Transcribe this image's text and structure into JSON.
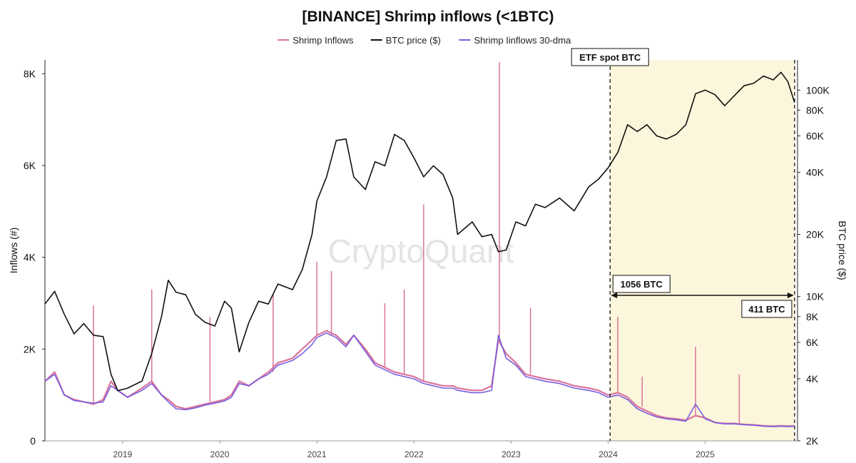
{
  "chart_data": {
    "type": "line",
    "title": "[BINANCE] Shrimp inflows (<1BTC)",
    "watermark": "CryptoQuant",
    "legend": {
      "placement": "top-center",
      "items": [
        {
          "label": "Shrimp Inflows",
          "color": "#d9739c"
        },
        {
          "label": "BTC price ($)",
          "color": "#111111"
        },
        {
          "label": "Shrimp Iinflows 30-dma",
          "color": "#7a5ee0"
        }
      ]
    },
    "y_left": {
      "label": "Inflows (#)",
      "range": [
        0,
        8300
      ],
      "ticks": [
        {
          "label": "0",
          "value": 0
        },
        {
          "label": "2K",
          "value": 2000
        },
        {
          "label": "4K",
          "value": 4000
        },
        {
          "label": "6K",
          "value": 6000
        },
        {
          "label": "8K",
          "value": 8000
        }
      ]
    },
    "y_right": {
      "label": "BTC price ($)",
      "scale": "log",
      "range": [
        2000,
        140000
      ],
      "ticks": [
        {
          "label": "2K",
          "value": 2000
        },
        {
          "label": "4K",
          "value": 4000
        },
        {
          "label": "6K",
          "value": 6000
        },
        {
          "label": "8K",
          "value": 8000
        },
        {
          "label": "10K",
          "value": 10000
        },
        {
          "label": "20K",
          "value": 20000
        },
        {
          "label": "40K",
          "value": 40000
        },
        {
          "label": "60K",
          "value": 60000
        },
        {
          "label": "80K",
          "value": 80000
        },
        {
          "label": "100K",
          "value": 100000
        }
      ]
    },
    "x_axis": {
      "range": [
        2018.2,
        2025.95
      ],
      "ticks": [
        {
          "label": "2019",
          "value": 2019.0
        },
        {
          "label": "2020",
          "value": 2020.0
        },
        {
          "label": "2021",
          "value": 2021.0
        },
        {
          "label": "2022",
          "value": 2022.0
        },
        {
          "label": "2023",
          "value": 2023.0
        },
        {
          "label": "2024",
          "value": 2024.0
        },
        {
          "label": "2025",
          "value": 2025.0
        }
      ]
    },
    "grid": false,
    "series": [
      {
        "name": "BTC price ($)",
        "axis": "right",
        "color": "#111111",
        "points": [
          [
            2018.2,
            9200
          ],
          [
            2018.3,
            10600
          ],
          [
            2018.4,
            8200
          ],
          [
            2018.5,
            6600
          ],
          [
            2018.6,
            7400
          ],
          [
            2018.7,
            6500
          ],
          [
            2018.8,
            6400
          ],
          [
            2018.88,
            4200
          ],
          [
            2018.95,
            3500
          ],
          [
            2019.05,
            3600
          ],
          [
            2019.2,
            3900
          ],
          [
            2019.3,
            5300
          ],
          [
            2019.4,
            8000
          ],
          [
            2019.47,
            12000
          ],
          [
            2019.55,
            10500
          ],
          [
            2019.65,
            10200
          ],
          [
            2019.75,
            8200
          ],
          [
            2019.85,
            7500
          ],
          [
            2019.95,
            7200
          ],
          [
            2020.05,
            9500
          ],
          [
            2020.12,
            8800
          ],
          [
            2020.2,
            5400
          ],
          [
            2020.3,
            7500
          ],
          [
            2020.4,
            9500
          ],
          [
            2020.5,
            9200
          ],
          [
            2020.6,
            11500
          ],
          [
            2020.75,
            10800
          ],
          [
            2020.85,
            13500
          ],
          [
            2020.95,
            20000
          ],
          [
            2021.0,
            29000
          ],
          [
            2021.1,
            38000
          ],
          [
            2021.2,
            57000
          ],
          [
            2021.3,
            58000
          ],
          [
            2021.38,
            38000
          ],
          [
            2021.5,
            33000
          ],
          [
            2021.6,
            45000
          ],
          [
            2021.7,
            43000
          ],
          [
            2021.8,
            61000
          ],
          [
            2021.9,
            57000
          ],
          [
            2022.0,
            47000
          ],
          [
            2022.1,
            38000
          ],
          [
            2022.2,
            43000
          ],
          [
            2022.3,
            39000
          ],
          [
            2022.4,
            30000
          ],
          [
            2022.45,
            20000
          ],
          [
            2022.6,
            23000
          ],
          [
            2022.7,
            19500
          ],
          [
            2022.8,
            20000
          ],
          [
            2022.87,
            16500
          ],
          [
            2022.95,
            16800
          ],
          [
            2023.05,
            23000
          ],
          [
            2023.15,
            22000
          ],
          [
            2023.25,
            28000
          ],
          [
            2023.35,
            27000
          ],
          [
            2023.5,
            30000
          ],
          [
            2023.65,
            26000
          ],
          [
            2023.8,
            34000
          ],
          [
            2023.9,
            37000
          ],
          [
            2024.0,
            42000
          ],
          [
            2024.1,
            50000
          ],
          [
            2024.2,
            68000
          ],
          [
            2024.3,
            63000
          ],
          [
            2024.4,
            68000
          ],
          [
            2024.5,
            60000
          ],
          [
            2024.6,
            58000
          ],
          [
            2024.7,
            61000
          ],
          [
            2024.8,
            68000
          ],
          [
            2024.9,
            96000
          ],
          [
            2025.0,
            100000
          ],
          [
            2025.1,
            95000
          ],
          [
            2025.2,
            84000
          ],
          [
            2025.3,
            94000
          ],
          [
            2025.4,
            105000
          ],
          [
            2025.5,
            108000
          ],
          [
            2025.6,
            117000
          ],
          [
            2025.7,
            112000
          ],
          [
            2025.78,
            122000
          ],
          [
            2025.85,
            110000
          ],
          [
            2025.92,
            87000
          ]
        ]
      },
      {
        "name": "Shrimp Inflows",
        "axis": "left",
        "color": "#d9739c",
        "points": [
          [
            2018.2,
            1300
          ],
          [
            2018.3,
            1500
          ],
          [
            2018.4,
            1000
          ],
          [
            2018.5,
            900
          ],
          [
            2018.6,
            850
          ],
          [
            2018.7,
            800
          ],
          [
            2018.8,
            900
          ],
          [
            2018.88,
            1300
          ],
          [
            2018.95,
            1100
          ],
          [
            2019.05,
            950
          ],
          [
            2019.2,
            1150
          ],
          [
            2019.3,
            1300
          ],
          [
            2019.4,
            1000
          ],
          [
            2019.47,
            900
          ],
          [
            2019.55,
            750
          ],
          [
            2019.65,
            700
          ],
          [
            2019.75,
            750
          ],
          [
            2019.85,
            800
          ],
          [
            2019.95,
            850
          ],
          [
            2020.05,
            900
          ],
          [
            2020.12,
            1000
          ],
          [
            2020.2,
            1300
          ],
          [
            2020.3,
            1200
          ],
          [
            2020.4,
            1350
          ],
          [
            2020.5,
            1500
          ],
          [
            2020.6,
            1700
          ],
          [
            2020.75,
            1800
          ],
          [
            2020.85,
            2000
          ],
          [
            2020.95,
            2200
          ],
          [
            2021.0,
            2300
          ],
          [
            2021.1,
            2400
          ],
          [
            2021.2,
            2300
          ],
          [
            2021.3,
            2100
          ],
          [
            2021.38,
            2300
          ],
          [
            2021.5,
            2000
          ],
          [
            2021.6,
            1700
          ],
          [
            2021.7,
            1600
          ],
          [
            2021.8,
            1500
          ],
          [
            2021.9,
            1450
          ],
          [
            2022.0,
            1400
          ],
          [
            2022.1,
            1300
          ],
          [
            2022.2,
            1250
          ],
          [
            2022.3,
            1200
          ],
          [
            2022.4,
            1200
          ],
          [
            2022.45,
            1150
          ],
          [
            2022.6,
            1100
          ],
          [
            2022.7,
            1100
          ],
          [
            2022.8,
            1200
          ],
          [
            2022.87,
            2200
          ],
          [
            2022.95,
            1900
          ],
          [
            2023.05,
            1700
          ],
          [
            2023.15,
            1450
          ],
          [
            2023.25,
            1400
          ],
          [
            2023.35,
            1350
          ],
          [
            2023.5,
            1300
          ],
          [
            2023.65,
            1200
          ],
          [
            2023.8,
            1150
          ],
          [
            2023.9,
            1100
          ],
          [
            2024.0,
            1000
          ],
          [
            2024.1,
            1050
          ],
          [
            2024.2,
            950
          ],
          [
            2024.3,
            750
          ],
          [
            2024.4,
            650
          ],
          [
            2024.5,
            550
          ],
          [
            2024.6,
            500
          ],
          [
            2024.7,
            480
          ],
          [
            2024.8,
            450
          ],
          [
            2024.9,
            550
          ],
          [
            2025.0,
            500
          ],
          [
            2025.1,
            400
          ],
          [
            2025.2,
            380
          ],
          [
            2025.3,
            380
          ],
          [
            2025.4,
            360
          ],
          [
            2025.5,
            350
          ],
          [
            2025.6,
            330
          ],
          [
            2025.7,
            320
          ],
          [
            2025.78,
            330
          ],
          [
            2025.85,
            320
          ],
          [
            2025.92,
            330
          ]
        ]
      },
      {
        "name": "Shrimp Iinflows 30-dma",
        "axis": "left",
        "color": "#7a5ee0",
        "points": [
          [
            2018.2,
            1300
          ],
          [
            2018.3,
            1450
          ],
          [
            2018.4,
            1000
          ],
          [
            2018.5,
            880
          ],
          [
            2018.6,
            850
          ],
          [
            2018.7,
            820
          ],
          [
            2018.8,
            850
          ],
          [
            2018.88,
            1200
          ],
          [
            2018.95,
            1100
          ],
          [
            2019.05,
            950
          ],
          [
            2019.2,
            1100
          ],
          [
            2019.3,
            1250
          ],
          [
            2019.4,
            1000
          ],
          [
            2019.47,
            850
          ],
          [
            2019.55,
            700
          ],
          [
            2019.65,
            680
          ],
          [
            2019.75,
            720
          ],
          [
            2019.85,
            780
          ],
          [
            2019.95,
            820
          ],
          [
            2020.05,
            870
          ],
          [
            2020.12,
            950
          ],
          [
            2020.2,
            1250
          ],
          [
            2020.3,
            1200
          ],
          [
            2020.4,
            1350
          ],
          [
            2020.5,
            1450
          ],
          [
            2020.6,
            1650
          ],
          [
            2020.75,
            1750
          ],
          [
            2020.85,
            1900
          ],
          [
            2020.95,
            2100
          ],
          [
            2021.0,
            2250
          ],
          [
            2021.1,
            2350
          ],
          [
            2021.2,
            2250
          ],
          [
            2021.3,
            2050
          ],
          [
            2021.38,
            2300
          ],
          [
            2021.5,
            1950
          ],
          [
            2021.6,
            1650
          ],
          [
            2021.7,
            1550
          ],
          [
            2021.8,
            1450
          ],
          [
            2021.9,
            1400
          ],
          [
            2022.0,
            1350
          ],
          [
            2022.1,
            1250
          ],
          [
            2022.2,
            1200
          ],
          [
            2022.3,
            1150
          ],
          [
            2022.4,
            1150
          ],
          [
            2022.45,
            1100
          ],
          [
            2022.6,
            1050
          ],
          [
            2022.7,
            1050
          ],
          [
            2022.8,
            1100
          ],
          [
            2022.87,
            2300
          ],
          [
            2022.95,
            1800
          ],
          [
            2023.05,
            1650
          ],
          [
            2023.15,
            1400
          ],
          [
            2023.25,
            1350
          ],
          [
            2023.35,
            1300
          ],
          [
            2023.5,
            1250
          ],
          [
            2023.65,
            1150
          ],
          [
            2023.8,
            1100
          ],
          [
            2023.9,
            1050
          ],
          [
            2024.0,
            950
          ],
          [
            2024.1,
            1000
          ],
          [
            2024.2,
            900
          ],
          [
            2024.3,
            700
          ],
          [
            2024.4,
            600
          ],
          [
            2024.5,
            520
          ],
          [
            2024.6,
            480
          ],
          [
            2024.7,
            460
          ],
          [
            2024.8,
            430
          ],
          [
            2024.9,
            800
          ],
          [
            2025.0,
            480
          ],
          [
            2025.1,
            400
          ],
          [
            2025.2,
            370
          ],
          [
            2025.3,
            370
          ],
          [
            2025.4,
            350
          ],
          [
            2025.5,
            340
          ],
          [
            2025.6,
            320
          ],
          [
            2025.7,
            310
          ],
          [
            2025.78,
            320
          ],
          [
            2025.85,
            310
          ],
          [
            2025.92,
            320
          ]
        ]
      }
    ],
    "spikes": [
      [
        2018.7,
        2950
      ],
      [
        2019.3,
        3300
      ],
      [
        2019.9,
        2700
      ],
      [
        2020.55,
        3200
      ],
      [
        2021.0,
        3900
      ],
      [
        2021.15,
        3700
      ],
      [
        2021.7,
        3000
      ],
      [
        2021.9,
        3300
      ],
      [
        2022.1,
        5150
      ],
      [
        2022.88,
        8250
      ],
      [
        2023.2,
        2900
      ],
      [
        2024.1,
        2700
      ],
      [
        2024.35,
        1400
      ],
      [
        2024.9,
        2050
      ],
      [
        2025.35,
        1450
      ]
    ],
    "annotations": {
      "etf_label": "ETF spot BTC",
      "etf_line_x": 2024.02,
      "end_line_x": 2025.92,
      "highlight_range": [
        2024.02,
        2025.92
      ],
      "highlight_color": "#fcf6dc",
      "arrow_label_left": "1056 BTC",
      "arrow_label_right": "411 BTC"
    }
  }
}
